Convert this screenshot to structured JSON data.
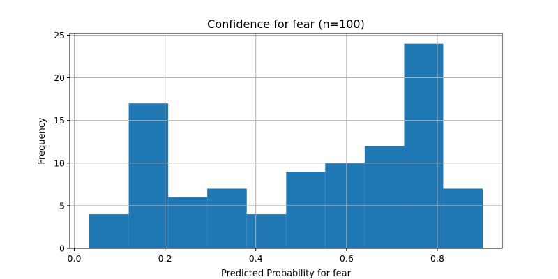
{
  "chart_data": {
    "type": "bar",
    "title": "Confidence for fear (n=100)",
    "xlabel": "Predicted Probability for fear",
    "ylabel": "Frequency",
    "bin_edges": [
      0.033,
      0.12,
      0.207,
      0.293,
      0.38,
      0.467,
      0.553,
      0.64,
      0.727,
      0.813,
      0.9
    ],
    "values": [
      4,
      17,
      6,
      7,
      4,
      9,
      10,
      12,
      24,
      7
    ],
    "xlim": [
      -0.01,
      0.943
    ],
    "ylim": [
      0,
      25.2
    ],
    "xticks": [
      0.0,
      0.2,
      0.4,
      0.6,
      0.8
    ],
    "xtick_labels": [
      "0.0",
      "0.2",
      "0.4",
      "0.6",
      "0.8"
    ],
    "yticks": [
      0,
      5,
      10,
      15,
      20,
      25
    ],
    "ytick_labels": [
      "0",
      "5",
      "10",
      "15",
      "20",
      "25"
    ],
    "grid": true,
    "bar_color": "#1f77b4"
  }
}
